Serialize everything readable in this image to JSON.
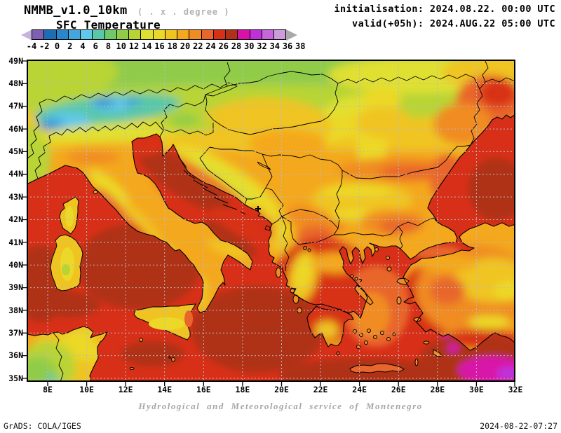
{
  "header": {
    "model_title": "NMMB_v1.0_10km",
    "model_subtitle": "( . x . degree )",
    "field_title": "SFC Temperature",
    "init_line": "initialisation: 2024.08.22. 00:00 UTC",
    "valid_line": "valid(+05h): 2024.AUG.22 05:00 UTC"
  },
  "colorbar": {
    "tick_labels": [
      "-4",
      "-2",
      "0",
      "2",
      "4",
      "6",
      "8",
      "10",
      "12",
      "14",
      "16",
      "18",
      "20",
      "22",
      "24",
      "26",
      "28",
      "30",
      "32",
      "34",
      "36",
      "38"
    ],
    "box_colors": [
      "#7d60b0",
      "#1e6cb4",
      "#2a86cc",
      "#44a6dc",
      "#60c8e8",
      "#58c8a8",
      "#70c868",
      "#90cc48",
      "#b8d434",
      "#e0e030",
      "#ecd828",
      "#f0c420",
      "#f4a81e",
      "#f08c24",
      "#e8662c",
      "#d83018",
      "#b03018",
      "#d812a8",
      "#c030d8",
      "#c468d8",
      "#cc9cdc"
    ],
    "left_arrow_color": "#c6b3dd",
    "right_arrow_color": "#a9a9a9"
  },
  "map": {
    "lat_labels": [
      "49N",
      "48N",
      "47N",
      "46N",
      "45N",
      "44N",
      "43N",
      "42N",
      "41N",
      "40N",
      "39N",
      "38N",
      "37N",
      "36N",
      "35N"
    ],
    "lon_labels": [
      "8E",
      "10E",
      "12E",
      "14E",
      "16E",
      "18E",
      "20E",
      "22E",
      "24E",
      "26E",
      "28E",
      "30E",
      "32E"
    ],
    "grid_color": "#b6bcc6",
    "sea_base_color": "#d83018",
    "land_base_color": "#f4a81e"
  },
  "footer": {
    "attribution": "Hydrological and Meteorological service of Montenegro",
    "grads_credit": "GrADS: COLA/IGES",
    "timestamp": "2024-08-22-07:27"
  }
}
